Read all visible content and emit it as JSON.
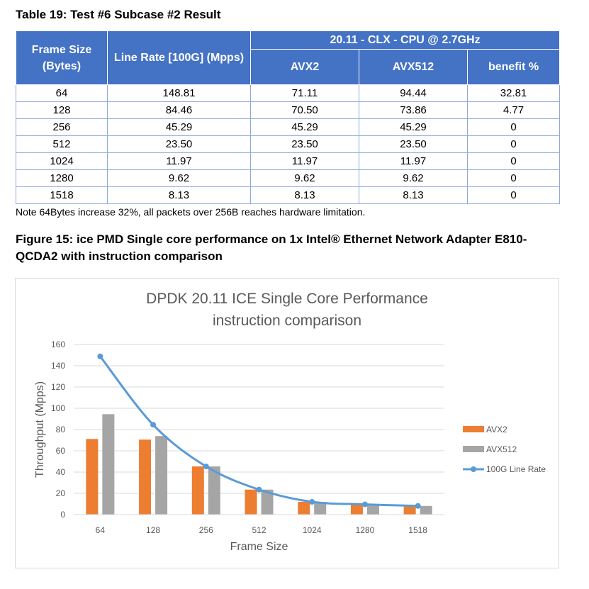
{
  "table": {
    "caption": "Table 19: Test #6 Subcase #2 Result",
    "headers": {
      "frame_size": "Frame Size (Bytes)",
      "line_rate": "Line Rate [100G] (Mpps)",
      "group": "20.11 - CLX - CPU @ 2.7GHz",
      "avx2": "AVX2",
      "avx512": "AVX512",
      "benefit": "benefit %"
    },
    "rows": [
      [
        "64",
        "148.81",
        "71.11",
        "94.44",
        "32.81"
      ],
      [
        "128",
        "84.46",
        "70.50",
        "73.86",
        "4.77"
      ],
      [
        "256",
        "45.29",
        "45.29",
        "45.29",
        "0"
      ],
      [
        "512",
        "23.50",
        "23.50",
        "23.50",
        "0"
      ],
      [
        "1024",
        "11.97",
        "11.97",
        "11.97",
        "0"
      ],
      [
        "1280",
        "9.62",
        "9.62",
        "9.62",
        "0"
      ],
      [
        "1518",
        "8.13",
        "8.13",
        "8.13",
        "0"
      ]
    ],
    "note": "Note 64Bytes increase 32%, all packets over 256B reaches hardware limitation."
  },
  "figure": {
    "caption": "Figure 15: ice PMD Single core performance on 1x Intel® Ethernet Network Adapter E810-QCDA2 with instruction comparison"
  },
  "chart_data": {
    "type": "bar",
    "title": [
      "DPDK 20.11 ICE Single Core Performance",
      "instruction comparison"
    ],
    "xlabel": "Frame Size",
    "ylabel": "Throughput (Mpps)",
    "categories": [
      "64",
      "128",
      "256",
      "512",
      "1024",
      "1280",
      "1518"
    ],
    "ylim": [
      0,
      160
    ],
    "yticks": [
      0,
      20,
      40,
      60,
      80,
      100,
      120,
      140,
      160
    ],
    "grid": true,
    "legend_position": "right",
    "series": [
      {
        "name": "AVX2",
        "kind": "bar",
        "color": "#ed7d31",
        "values": [
          71.11,
          70.5,
          45.29,
          23.5,
          11.97,
          9.62,
          8.13
        ]
      },
      {
        "name": "AVX512",
        "kind": "bar",
        "color": "#a5a5a5",
        "values": [
          94.44,
          73.86,
          45.29,
          23.5,
          11.97,
          9.62,
          8.13
        ]
      },
      {
        "name": "100G Line Rate",
        "kind": "line",
        "color": "#5b9bd5",
        "values": [
          148.81,
          84.46,
          45.29,
          23.5,
          11.97,
          9.62,
          8.13
        ]
      }
    ]
  }
}
